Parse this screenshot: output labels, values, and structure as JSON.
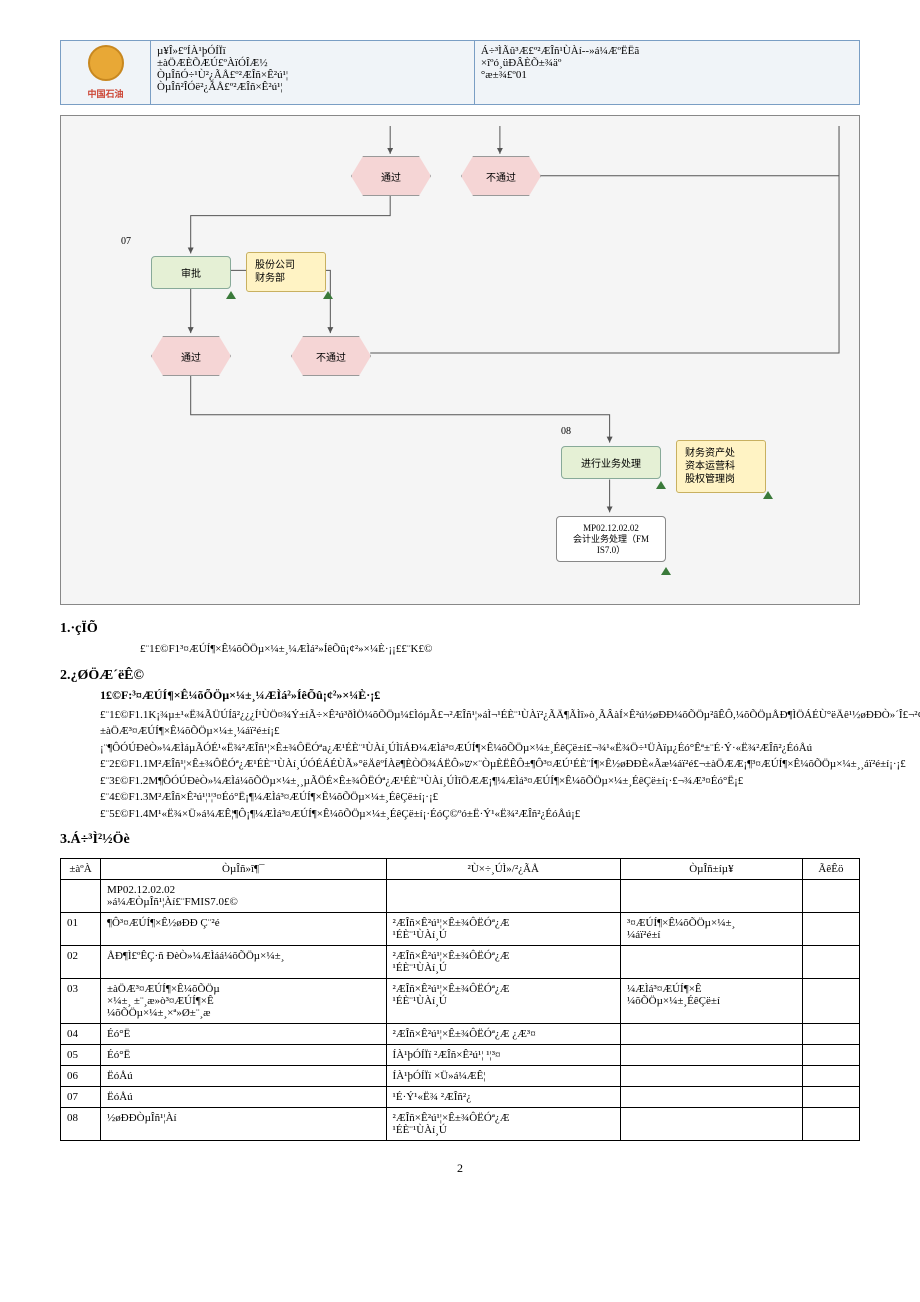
{
  "header": {
    "logo_text": "中国石油",
    "col1_lines": [
      "µ¥Î»£ºÍÀ¹þÓÍÏï",
      "±àÖÆÈÕÆÚ£ºÀïÓÎÆ½",
      "ÒµÎñÓ÷¹Ù²¿ÃÅ£º²ÆÎñ×Ê²ú¹¦",
      "ÒµÎñ²ÎÓë²¿ÃÅ£º²ÆÎñ×Ê²ú¹¦"
    ],
    "col2_lines": [
      "Á÷³ÌÃû³Æ£º²ÆÎñ¹ÙÀí--»á¼ÆºËËã",
      "",
      "×îºó¸üÐÂÈÕ±¾äº",
      "°æ±¾£º01"
    ]
  },
  "flow": {
    "nodes": {
      "hex_pass_top": "通过",
      "hex_nopass_top": "不通过",
      "label_07": "07",
      "rect_approve": "审批",
      "note_finance": "股份公司\n财务部",
      "hex_pass_mid": "通过",
      "hex_nopass_mid": "不通过",
      "label_08": "08",
      "rect_process": "进行业务处理",
      "note_dept": "财务资产处\n资本运营科\n股权管理岗",
      "doc_text": "MP02.12.02.02\n会计业务处理（FM\nIS7.0）"
    }
  },
  "sec1": {
    "title": "1.·çÏÕ",
    "body": "£¨1£©F1³¤ÆÚÍ¶×Ê¼õÕÖµ×¼±¸¼ÆÌá²»ÍêÕû¡¢²»×¼È·¡¡££¨K£©"
  },
  "sec2": {
    "title": "2.¿ØÖÆ´ëÊ©",
    "sub": "1£©F:³¤ÆÚÍ¶×Ê¼õÕÖµ×¼±¸¼ÆÌá²»ÍêÕû¡¢²»×¼È·¡£",
    "p1": "£¨1£©F1.1K¡¾µ±¹«Ë¾ÃÜÚÍâ²¿¿¿Í¹ÙÖ¤¾Ý±íÃ÷×Ê²ú³ðÌÖ¼õÕÖµ¼£ÌóµÃ£¬²ÆÎñ¹¦»áÌ¬¹ÉÈ¨¹ÙÀï²¿ÃÄ¶ÃÌî»ò¸ÃÂàÍ×Ê²ú½øÐÐ¼õÕÖµ²âÊÔ,¼õÕÖµÅÐ¶ÌÖÁÉÙ°ëÄê¹½øÐÐÒ»´Î£¬²¢±àÖÆ³¤ÆÚÍ¶×Ê¼õÕÖµ×¼±¸¼áï²é±í¡£¡¨¶ÔÓÚÐèÒ»¼ÆÌáµÃÓÉ¹«Ë¾²ÆÎñ¹¦×Ê±¾ÔËÓªa¿Æ¹ÉÈ¨¹ÙÀí¸ÚÌîÁÐ¼ÆÌá³¤ÆÚÍ¶×Ê¼õÕÖµ×¼±¸ÉêÇë±í£¬¾¹«Ë¾Ö÷¹ÜÀïµ¿Éó°Êª±¨É·Ý·«Ë¾²ÆÎñ²¿ÉóÅú",
    "p2": "£¨2£©F1.1M²ÆÎñ¹¦×Ê±¾ÔËÓª¿Æ¹ÉÈ¨¹ÙÀí¸ÚÓÉÁÉÙÃ»°ëÄêºÍÀë¶ÈÒÖ¾ÁËÔ»ש×¨ÒµÈËÊÔ±¶Ô³¤ÆÚ¹ÉÈ¨Í¶×Ê½øÐÐÈ«Ãæ¼áï²é£¬±àÖÆÆ¡¶³¤ÆÚÍ¶×Ê¼õÕÖµ×¼±¸¸áï²é±í¡·¡£",
    "p3": "£¨3£©F1.2M¶ÔÓÚÐèÒ»¼ÆÌá¼õÕÖµ×¼±¸¸µÃÖÉ×Ê±¾ÔËÓª¿Æ¹ÉÈ¨¹ÙÀí¸ÚÌîÖÆÆ¡¶¼ÆÌá³¤ÆÚÍ¶×Ê¼õÕÖµ×¼±¸ÉêÇë±í¡·£¬¾Æ³¤Éó°Ë¡£",
    "p4": "£¨4£©F1.3M²ÆÎñ×Ê²ú¹¦¹¦³¤Éó°Ë¡¶¼ÆÌá³¤ÆÚÍ¶×Ê¼õÕÖµ×¼±¸ÉêÇë±í¡·¡£",
    "p5": "£¨5£©F1.4M¹«Ë¾×Ü»á¼ÆÊ¦¶Ô¡¶¼ÆÌá³¤ÆÚÍ¶×Ê¼õÕÖµ×¼±¸ÉêÇë±í¡·ÉóÇ©ºó±Ë·Ý¹«Ë¾²ÆÎñ²¿ÉóÅú¡£"
  },
  "sec3": {
    "title": "3.Á÷³Ì²½Öè"
  },
  "table": {
    "headers": [
      "±àºÀ",
      "ÒµÎñ»î¶¯",
      "²Ù×÷¸ÚÌ»/²¿ÃÅ",
      "ÒµÎñ±íµ¥",
      "ÃêÊö"
    ],
    "rows": [
      [
        "",
        "MP02.12.02.02\n»á¼ÆÒµÎñ¹¦Àí£¨FMIS7.0£©",
        "",
        "",
        ""
      ],
      [
        "01",
        "¶Ô³¤ÆÚÍ¶×Ê½øÐÐ Ç¨²é",
        "²ÆÎñ×Ê²ú¹¦×Ê±¾ÔËÓª¿Æ\n¹ÉÈ¨¹ÙÀí¸Ú",
        "³¤ÆÚÍ¶×Ê¼õÕÖµ×¼±¸\n¼áï²é±í",
        ""
      ],
      [
        "02",
        "ÅÐ¶Ì£ºÊÇ·ñ ÐèÒ»¼ÆÌáá¼õÕÖµ×¼±¸",
        "²ÆÎñ×Ê²ú¹¦×Ê±¾ÔËÓª¿Æ\n¹ÉÈ¨¹ÙÀí¸Ú",
        "",
        ""
      ],
      [
        "03",
        "±àÖÆ³¤ÆÚÍ¶×Ê¼õÕÖµ\n×¼±¸ ±¨¸æ»ò³¤ÆÚÍ¶×Ê\n¼õÕÖµ×¼±¸×ª»Ø±¨¸æ",
        "²ÆÎñ×Ê²ú¹¦×Ê±¾ÔËÓª¿Æ\n¹ÉÈ¨¹ÙÀí¸Ú",
        "¼ÆÌá³¤ÆÚÍ¶×Ê\n¼õÕÖµ×¼±¸ÉêÇë±í",
        ""
      ],
      [
        "04",
        "Éó°Ë",
        "²ÆÎñ×Ê²ú¹¦×Ê±¾ÔËÓª¿Æ ¿Æ³¤",
        "",
        ""
      ],
      [
        "05",
        "Éó°Ë",
        "ÍÀ¹þÓÍÏï  ²ÆÎñ×Ê²ú¹¦  ¹¦³¤",
        "",
        ""
      ],
      [
        "06",
        "ËóÅú",
        "ÍÀ¹þÓÍÏï ×Ü»á¼ÆÊ¦",
        "",
        ""
      ],
      [
        "07",
        "ËóÅú",
        "¹É·Ý¹«Ë¾  ²ÆÎñ²¿",
        "",
        ""
      ],
      [
        "08",
        "½øÐÐÒµÎñ¹¦Àí",
        "²ÆÎñ×Ê²ú¹¦×Ê±¾ÔËÓª¿Æ\n¹ÉÈ¨¹ÙÀí¸Ú",
        "",
        ""
      ]
    ]
  },
  "page_num": "2"
}
